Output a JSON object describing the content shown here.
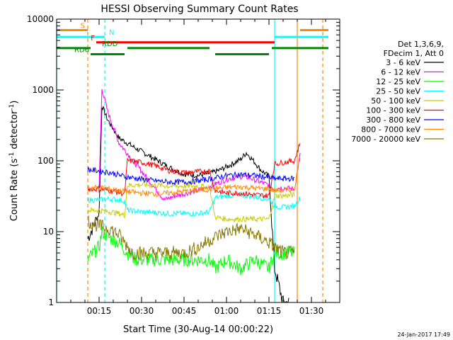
{
  "chart_data": {
    "type": "line",
    "title": "HESSI Observing Summary Count Rates",
    "xlabel": "Start Time (30-Aug-14 00:00:22)",
    "ylabel": "Count Rate (s",
    "ylabel_sup1": "-1",
    "ylabel_mid": " detector",
    "ylabel_sup2": "-1",
    "ylabel_end": ")",
    "xlim": [
      0,
      100
    ],
    "ylim": [
      1,
      10000
    ],
    "y_scale": "log",
    "x_ticks": [
      {
        "x": 15,
        "label": "00:15"
      },
      {
        "x": 30,
        "label": "00:30"
      },
      {
        "x": 45,
        "label": "00:45"
      },
      {
        "x": 60,
        "label": "01:00"
      },
      {
        "x": 75,
        "label": "01:15"
      },
      {
        "x": 90,
        "label": "01:30"
      }
    ],
    "y_ticks": [
      {
        "y": 1,
        "label": "1"
      },
      {
        "y": 10,
        "label": "10"
      },
      {
        "y": 100,
        "label": "100"
      },
      {
        "y": 1000,
        "label": "1000"
      },
      {
        "y": 10000,
        "label": "10000"
      }
    ],
    "legend_header": [
      "Det 1,3,6,9,",
      "FDecim 1, Att 0"
    ],
    "legend_position": "right",
    "series": [
      {
        "name": "3 - 6 keV",
        "color": "#000000",
        "points": [
          [
            11,
            8
          ],
          [
            13,
            12
          ],
          [
            15,
            18
          ],
          [
            16,
            600
          ],
          [
            18,
            380
          ],
          [
            22,
            210
          ],
          [
            28,
            150
          ],
          [
            34,
            110
          ],
          [
            40,
            80
          ],
          [
            45,
            65
          ],
          [
            50,
            62
          ],
          [
            55,
            68
          ],
          [
            58,
            75
          ],
          [
            62,
            90
          ],
          [
            65,
            105
          ],
          [
            67,
            130
          ],
          [
            70,
            95
          ],
          [
            72,
            75
          ],
          [
            75,
            60
          ],
          [
            77,
            3
          ],
          [
            80,
            1
          ],
          [
            82,
            1
          ]
        ]
      },
      {
        "name": "6 - 12 keV",
        "color": "#ff00ff",
        "points": [
          [
            15,
            40
          ],
          [
            16,
            1050
          ],
          [
            18,
            500
          ],
          [
            22,
            180
          ],
          [
            28,
            90
          ],
          [
            34,
            45
          ],
          [
            38,
            28
          ],
          [
            42,
            32
          ],
          [
            46,
            35
          ],
          [
            50,
            38
          ],
          [
            55,
            45
          ],
          [
            60,
            55
          ],
          [
            65,
            60
          ],
          [
            68,
            58
          ],
          [
            72,
            50
          ],
          [
            75,
            45
          ],
          [
            77,
            40
          ],
          [
            79,
            42
          ],
          [
            84,
            40
          ],
          [
            86,
            120
          ]
        ]
      },
      {
        "name": "12 - 25 keV",
        "color": "#00ff00",
        "points": [
          [
            11,
            4
          ],
          [
            13,
            5
          ],
          [
            15,
            6
          ],
          [
            16,
            10
          ],
          [
            19,
            8
          ],
          [
            22,
            7
          ],
          [
            25,
            5
          ],
          [
            28,
            4
          ],
          [
            35,
            4
          ],
          [
            45,
            4
          ],
          [
            54,
            4
          ],
          [
            56,
            3
          ],
          [
            60,
            4
          ],
          [
            65,
            3
          ],
          [
            70,
            4
          ],
          [
            75,
            3
          ],
          [
            77,
            5
          ],
          [
            80,
            5
          ],
          [
            84,
            5
          ]
        ]
      },
      {
        "name": "25 - 50 keV",
        "color": "#00ffff",
        "points": [
          [
            11,
            28
          ],
          [
            15,
            28
          ],
          [
            19,
            29
          ],
          [
            22,
            28
          ],
          [
            24,
            27
          ],
          [
            25,
            20
          ],
          [
            30,
            19
          ],
          [
            40,
            18
          ],
          [
            50,
            18
          ],
          [
            54,
            19
          ],
          [
            56,
            30
          ],
          [
            60,
            32
          ],
          [
            65,
            33
          ],
          [
            70,
            31
          ],
          [
            75,
            29
          ],
          [
            77,
            23
          ],
          [
            80,
            22
          ],
          [
            84,
            23
          ],
          [
            86,
            30
          ]
        ]
      },
      {
        "name": "50 - 100 keV",
        "color": "#cccc00",
        "points": [
          [
            11,
            20
          ],
          [
            15,
            20
          ],
          [
            19,
            19
          ],
          [
            22,
            18
          ],
          [
            24,
            17
          ],
          [
            25,
            45
          ],
          [
            30,
            46
          ],
          [
            40,
            44
          ],
          [
            50,
            44
          ],
          [
            54,
            42
          ],
          [
            56,
            16
          ],
          [
            60,
            15
          ],
          [
            65,
            15
          ],
          [
            70,
            15
          ],
          [
            75,
            15
          ],
          [
            77,
            32
          ],
          [
            80,
            32
          ],
          [
            84,
            33
          ]
        ]
      },
      {
        "name": "100 - 300 keV",
        "color": "#ff0000",
        "points": [
          [
            11,
            40
          ],
          [
            15,
            40
          ],
          [
            19,
            38
          ],
          [
            22,
            36
          ],
          [
            24,
            34
          ],
          [
            25,
            100
          ],
          [
            30,
            95
          ],
          [
            35,
            85
          ],
          [
            40,
            72
          ],
          [
            45,
            68
          ],
          [
            50,
            70
          ],
          [
            54,
            72
          ],
          [
            56,
            38
          ],
          [
            60,
            35
          ],
          [
            65,
            35
          ],
          [
            70,
            33
          ],
          [
            75,
            32
          ],
          [
            77,
            90
          ],
          [
            80,
            95
          ],
          [
            84,
            100
          ],
          [
            86,
            180
          ]
        ]
      },
      {
        "name": "300 - 800 keV",
        "color": "#0000ff",
        "points": [
          [
            11,
            75
          ],
          [
            15,
            72
          ],
          [
            19,
            68
          ],
          [
            24,
            60
          ],
          [
            30,
            55
          ],
          [
            35,
            52
          ],
          [
            40,
            50
          ],
          [
            45,
            50
          ],
          [
            50,
            52
          ],
          [
            55,
            56
          ],
          [
            60,
            62
          ],
          [
            65,
            64
          ],
          [
            70,
            62
          ],
          [
            75,
            58
          ],
          [
            77,
            56
          ],
          [
            80,
            56
          ],
          [
            84,
            56
          ]
        ]
      },
      {
        "name": "800 - 7000 keV",
        "color": "#ff8800",
        "points": [
          [
            11,
            42
          ],
          [
            15,
            42
          ],
          [
            19,
            40
          ],
          [
            24,
            37
          ],
          [
            30,
            35
          ],
          [
            35,
            34
          ],
          [
            40,
            35
          ],
          [
            45,
            37
          ],
          [
            50,
            38
          ],
          [
            55,
            40
          ],
          [
            60,
            42
          ],
          [
            65,
            43
          ],
          [
            70,
            41
          ],
          [
            75,
            40
          ],
          [
            77,
            38
          ],
          [
            80,
            38
          ],
          [
            84,
            40
          ],
          [
            86,
            120
          ]
        ]
      },
      {
        "name": "7000 - 20000 keV",
        "color": "#887700",
        "points": [
          [
            11,
            14
          ],
          [
            15,
            12
          ],
          [
            19,
            11
          ],
          [
            22,
            9
          ],
          [
            24,
            7
          ],
          [
            27,
            5
          ],
          [
            30,
            5
          ],
          [
            35,
            5
          ],
          [
            40,
            5
          ],
          [
            45,
            5
          ],
          [
            50,
            6
          ],
          [
            55,
            8
          ],
          [
            60,
            10
          ],
          [
            65,
            11
          ],
          [
            70,
            9
          ],
          [
            75,
            7
          ],
          [
            77,
            6
          ],
          [
            80,
            5
          ],
          [
            84,
            5
          ]
        ]
      }
    ],
    "flag_bars": [
      {
        "label": "S",
        "color": "#ff8800",
        "level": 7000,
        "segments": [
          [
            0,
            11
          ],
          [
            86,
            96
          ]
        ]
      },
      {
        "label": "N",
        "color": "#00ffff",
        "level": 5600,
        "segments": [
          [
            0,
            17
          ],
          [
            77,
            96
          ]
        ]
      },
      {
        "label": "F",
        "color": "#ff0000",
        "level": 4700,
        "segments": [
          [
            14,
            77
          ]
        ]
      },
      {
        "label": "RDD",
        "color": "#008800",
        "level": 3900,
        "segments": [
          [
            0,
            12
          ],
          [
            25,
            54
          ],
          [
            76,
            96
          ]
        ]
      },
      {
        "label": "RD6",
        "color": "#008800",
        "level": 3200,
        "segments": [
          [
            12,
            24
          ],
          [
            56,
            75
          ]
        ]
      }
    ],
    "vertical_lines": [
      {
        "x": 0,
        "color": "#00ffff",
        "style": "solid"
      },
      {
        "x": 11,
        "color": "#ff8800",
        "style": "dashed"
      },
      {
        "x": 17,
        "color": "#00ffff",
        "style": "dashed"
      },
      {
        "x": 77,
        "color": "#00ffff",
        "style": "solid"
      },
      {
        "x": 85,
        "color": "#ff8800",
        "style": "solid"
      },
      {
        "x": 94,
        "color": "#ff8800",
        "style": "dashed"
      }
    ],
    "footer_date": "24-Jan-2017 17:49",
    "grid": false
  }
}
